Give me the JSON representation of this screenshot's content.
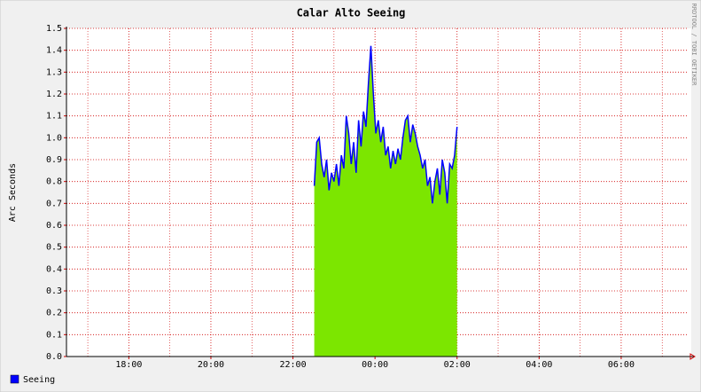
{
  "chart_data": {
    "type": "area",
    "title": "Calar Alto Seeing",
    "y_label": "Arc Seconds",
    "watermark": "RRDTOOL / TOBI OETIKER",
    "x": [
      22.52,
      22.58,
      22.64,
      22.7,
      22.76,
      22.82,
      22.88,
      22.94,
      23.0,
      23.06,
      23.12,
      23.18,
      23.24,
      23.3,
      23.36,
      23.42,
      23.48,
      23.54,
      23.6,
      23.66,
      23.72,
      23.78,
      23.84,
      23.9,
      23.96,
      24.02,
      24.08,
      24.14,
      24.2,
      24.26,
      24.32,
      24.38,
      24.44,
      24.5,
      24.56,
      24.62,
      24.68,
      24.74,
      24.8,
      24.86,
      24.92,
      24.98,
      25.04,
      25.1,
      25.16,
      25.22,
      25.28,
      25.34,
      25.4,
      25.46,
      25.52,
      25.58,
      25.64,
      25.7,
      25.76,
      25.82,
      25.88,
      25.94,
      26.0
    ],
    "series": [
      {
        "name": "Seeing",
        "color": "#0000ff",
        "fill": "#7ce600",
        "values": [
          0.78,
          0.98,
          1.0,
          0.88,
          0.82,
          0.9,
          0.76,
          0.84,
          0.8,
          0.88,
          0.78,
          0.92,
          0.86,
          1.1,
          1.02,
          0.88,
          0.98,
          0.84,
          1.08,
          0.96,
          1.12,
          1.05,
          1.25,
          1.42,
          1.2,
          1.02,
          1.08,
          0.98,
          1.05,
          0.92,
          0.96,
          0.86,
          0.94,
          0.88,
          0.95,
          0.9,
          1.0,
          1.08,
          1.1,
          0.98,
          1.06,
          1.02,
          0.96,
          0.92,
          0.86,
          0.9,
          0.78,
          0.82,
          0.7,
          0.8,
          0.86,
          0.74,
          0.9,
          0.84,
          0.7,
          0.88,
          0.86,
          0.92,
          1.05
        ]
      }
    ],
    "xlim": [
      16.48,
      31.6
    ],
    "xticks": [
      {
        "value": 18,
        "label": "18:00"
      },
      {
        "value": 20,
        "label": "20:00"
      },
      {
        "value": 22,
        "label": "22:00"
      },
      {
        "value": 24,
        "label": "00:00"
      },
      {
        "value": 26,
        "label": "02:00"
      },
      {
        "value": 28,
        "label": "04:00"
      },
      {
        "value": 30,
        "label": "06:00"
      }
    ],
    "ylim": [
      0,
      1.5
    ],
    "yticks": [
      {
        "value": 0,
        "label": "0.0"
      },
      0.1,
      0.2,
      0.3,
      0.4,
      0.5,
      0.6,
      0.7,
      0.8,
      0.9,
      {
        "value": 1,
        "label": "1.0"
      },
      1.1,
      1.2,
      1.3,
      1.4,
      1.5
    ],
    "grid": true,
    "grid_color": "#d00000"
  }
}
